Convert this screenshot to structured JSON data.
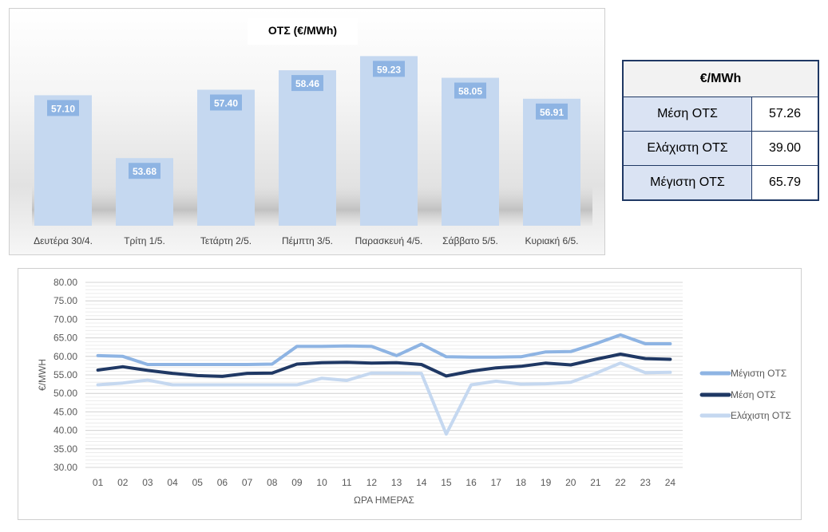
{
  "colors": {
    "bar": "#c5d8f0",
    "bar_label_bg": "#8eb4e3",
    "max_line": "#8eb4e3",
    "avg_line": "#1f3864",
    "min_line": "#c5d8f0",
    "table_border": "#1f3864",
    "table_label_bg": "#dae3f3"
  },
  "chart_data": [
    {
      "type": "bar",
      "title": "ΟΤΣ (€/MWh)",
      "categories": [
        "Δευτέρα 30/4.",
        "Τρίτη 1/5.",
        "Τετάρτη 2/5.",
        "Πέμπτη 3/5.",
        "Παρασκευή 4/5.",
        "Σάββατο 5/5.",
        "Κυριακή 6/5."
      ],
      "values": [
        57.1,
        53.68,
        57.4,
        58.46,
        59.23,
        58.05,
        56.91
      ],
      "value_labels": [
        "57.10",
        "53.68",
        "57.40",
        "58.46",
        "59.23",
        "58.05",
        "56.91"
      ],
      "ylim": [
        50,
        60.2
      ],
      "grid": false
    },
    {
      "type": "line",
      "title": "",
      "xlabel": "ΩΡΑ ΗΜΕΡΑΣ",
      "ylabel": "€/MWH",
      "x": [
        "01",
        "02",
        "03",
        "04",
        "05",
        "06",
        "07",
        "08",
        "09",
        "10",
        "11",
        "12",
        "13",
        "14",
        "15",
        "16",
        "17",
        "18",
        "19",
        "20",
        "21",
        "22",
        "23",
        "24"
      ],
      "ylim": [
        30,
        80
      ],
      "yticks": [
        "30.00",
        "35.00",
        "40.00",
        "45.00",
        "50.00",
        "55.00",
        "60.00",
        "65.00",
        "70.00",
        "75.00",
        "80.00"
      ],
      "grid": true,
      "legend_position": "right",
      "series": [
        {
          "name": "Μέγιστη ΟΤΣ",
          "values": [
            60.2,
            60.0,
            57.8,
            57.8,
            57.8,
            57.8,
            57.8,
            57.9,
            62.7,
            62.7,
            62.8,
            62.7,
            60.2,
            63.3,
            59.9,
            59.8,
            59.8,
            59.9,
            61.2,
            61.3,
            63.4,
            65.79,
            63.4,
            63.4
          ]
        },
        {
          "name": "Μέση ΟΤΣ",
          "values": [
            56.3,
            57.2,
            56.2,
            55.4,
            54.8,
            54.6,
            55.4,
            55.5,
            57.9,
            58.3,
            58.4,
            58.2,
            58.3,
            57.8,
            54.7,
            56.0,
            56.9,
            57.3,
            58.2,
            57.7,
            59.2,
            60.6,
            59.4,
            59.2
          ]
        },
        {
          "name": "Ελάχιστη ΟΤΣ",
          "values": [
            52.3,
            52.8,
            53.6,
            52.3,
            52.3,
            52.3,
            52.3,
            52.3,
            52.3,
            54.1,
            53.5,
            55.5,
            55.5,
            55.4,
            39.0,
            52.3,
            53.3,
            52.5,
            52.6,
            53.0,
            55.4,
            58.2,
            55.6,
            55.7
          ]
        }
      ]
    }
  ],
  "stats_table": {
    "header": "€/MWh",
    "rows": [
      {
        "label": "Μέση ΟΤΣ",
        "value": "57.26"
      },
      {
        "label": "Ελάχιστη ΟΤΣ",
        "value": "39.00"
      },
      {
        "label": "Μέγιστη ΟΤΣ",
        "value": "65.79"
      }
    ]
  }
}
